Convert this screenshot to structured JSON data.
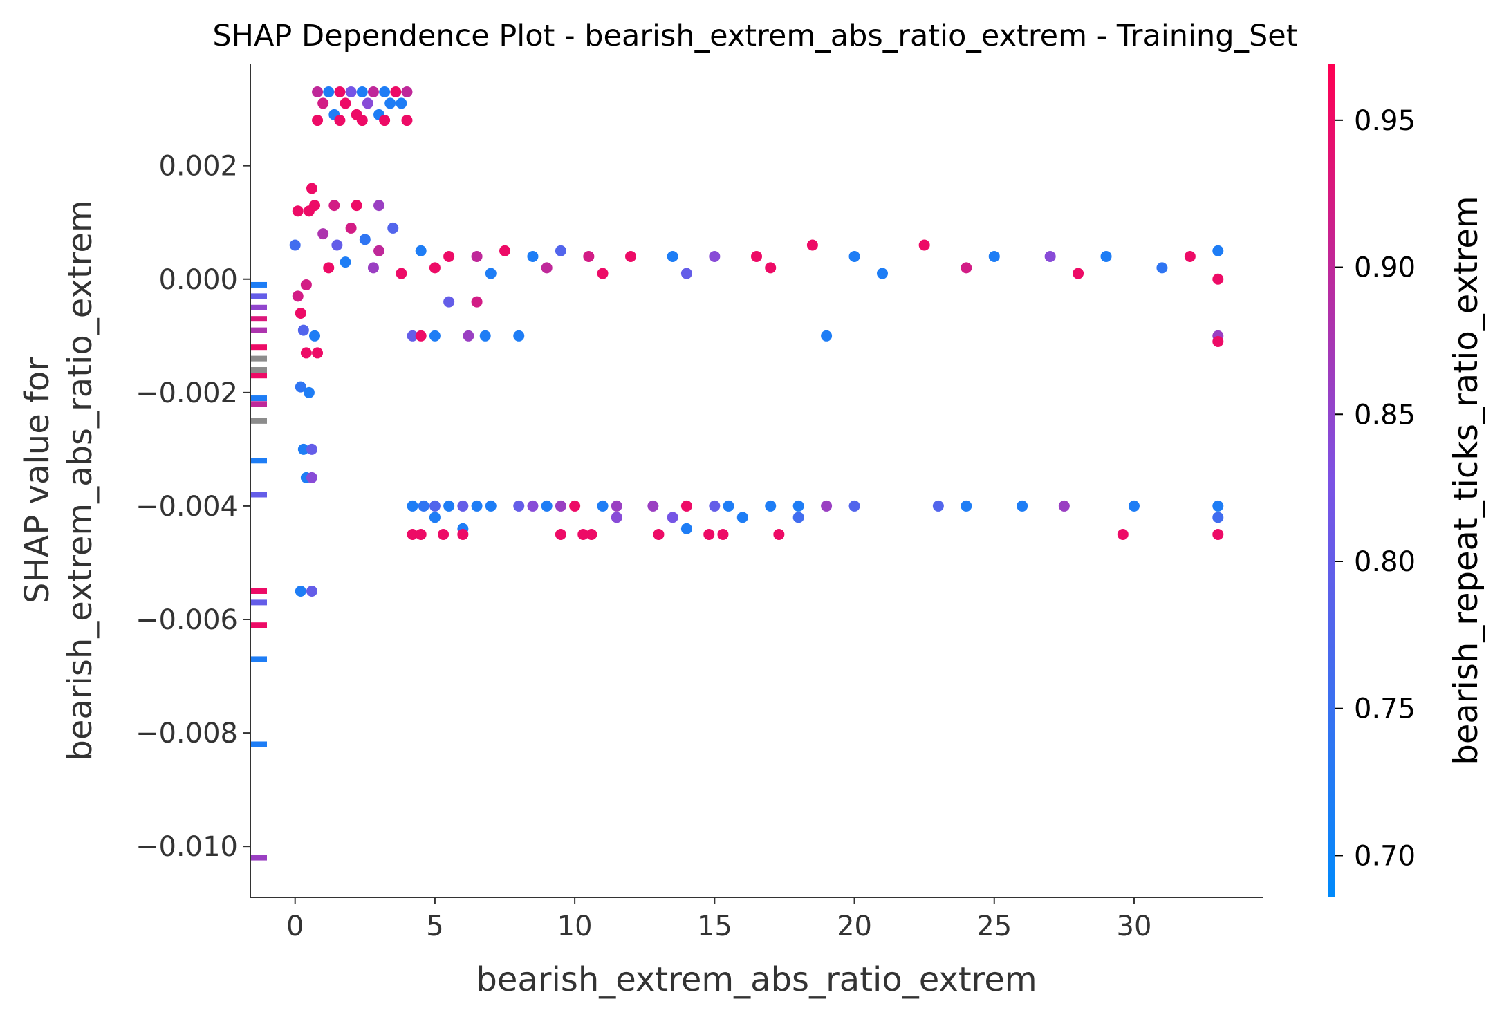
{
  "chart_data": {
    "type": "scatter",
    "title": "SHAP Dependence Plot - bearish_extrem_abs_ratio_extrem - Training_Set",
    "xlabel": "bearish_extrem_abs_ratio_extrem",
    "ylabel_line1": "SHAP value for",
    "ylabel_line2": "bearish_extrem_abs_ratio_extrem",
    "xlim": [
      -1.6,
      34.6
    ],
    "ylim": [
      -0.0109,
      0.0038
    ],
    "xticks": [
      0,
      5,
      10,
      15,
      20,
      25,
      30
    ],
    "xtick_labels": [
      "0",
      "5",
      "10",
      "15",
      "20",
      "25",
      "30"
    ],
    "yticks": [
      0.002,
      0.0,
      -0.002,
      -0.004,
      -0.006,
      -0.008,
      -0.01
    ],
    "ytick_labels": [
      "0.002",
      "0.000",
      "−0.002",
      "−0.004",
      "−0.006",
      "−0.008",
      "−0.010"
    ],
    "grid": false,
    "colorbar": {
      "title": "bearish_repeat_ticks_ratio_extrem",
      "range": [
        0.686,
        0.969
      ],
      "ticks": [
        0.7,
        0.75,
        0.8,
        0.85,
        0.9,
        0.95
      ],
      "tick_labels": [
        "0.70",
        "0.75",
        "0.80",
        "0.85",
        "0.90",
        "0.95"
      ],
      "colormap": [
        "#008afb",
        "#7c52e4",
        "#ff0052"
      ]
    },
    "missing_value_marks": [
      {
        "y": -0.0001,
        "c": 0.72
      },
      {
        "y": -0.0003,
        "c": 0.8
      },
      {
        "y": -0.0005,
        "c": 0.85
      },
      {
        "y": -0.0007,
        "c": 0.93
      },
      {
        "y": -0.0009,
        "c": 0.88
      },
      {
        "y": -0.0012,
        "c": 0.95
      },
      {
        "y": -0.0014,
        "c": null
      },
      {
        "y": -0.0016,
        "c": null
      },
      {
        "y": -0.0017,
        "c": 0.95
      },
      {
        "y": -0.0021,
        "c": 0.72
      },
      {
        "y": -0.0022,
        "c": 0.9
      },
      {
        "y": -0.0025,
        "c": null
      },
      {
        "y": -0.0032,
        "c": 0.72
      },
      {
        "y": -0.0038,
        "c": 0.8
      },
      {
        "y": -0.0055,
        "c": 0.95
      },
      {
        "y": -0.0057,
        "c": 0.8
      },
      {
        "y": -0.0061,
        "c": 0.95
      },
      {
        "y": -0.0067,
        "c": 0.72
      },
      {
        "y": -0.0082,
        "c": 0.72
      },
      {
        "y": -0.0102,
        "c": 0.86
      }
    ],
    "points": [
      {
        "x": 0.0,
        "y": 0.0006,
        "c": 0.76
      },
      {
        "x": 0.1,
        "y": -0.0003,
        "c": 0.92
      },
      {
        "x": 0.2,
        "y": -0.0006,
        "c": 0.95
      },
      {
        "x": 0.3,
        "y": -0.0009,
        "c": 0.78
      },
      {
        "x": 0.4,
        "y": -0.0013,
        "c": 0.95
      },
      {
        "x": 0.2,
        "y": -0.0019,
        "c": 0.74
      },
      {
        "x": 0.5,
        "y": -0.002,
        "c": 0.72
      },
      {
        "x": 0.3,
        "y": -0.003,
        "c": 0.72
      },
      {
        "x": 0.6,
        "y": -0.003,
        "c": 0.8
      },
      {
        "x": 0.4,
        "y": -0.0035,
        "c": 0.72
      },
      {
        "x": 0.6,
        "y": -0.0035,
        "c": 0.84
      },
      {
        "x": 0.2,
        "y": -0.0055,
        "c": 0.72
      },
      {
        "x": 0.6,
        "y": -0.0055,
        "c": 0.8
      },
      {
        "x": 0.1,
        "y": 0.0012,
        "c": 0.95
      },
      {
        "x": 0.5,
        "y": 0.0012,
        "c": 0.95
      },
      {
        "x": 0.6,
        "y": 0.0016,
        "c": 0.95
      },
      {
        "x": 0.7,
        "y": 0.0013,
        "c": 0.95
      },
      {
        "x": 0.4,
        "y": -0.0001,
        "c": 0.92
      },
      {
        "x": 0.7,
        "y": -0.001,
        "c": 0.72
      },
      {
        "x": 0.8,
        "y": -0.0013,
        "c": 0.95
      },
      {
        "x": 0.8,
        "y": 0.0033,
        "c": 0.9
      },
      {
        "x": 1.2,
        "y": 0.0033,
        "c": 0.72
      },
      {
        "x": 1.6,
        "y": 0.0033,
        "c": 0.95
      },
      {
        "x": 2.0,
        "y": 0.0033,
        "c": 0.82
      },
      {
        "x": 2.4,
        "y": 0.0033,
        "c": 0.72
      },
      {
        "x": 2.8,
        "y": 0.0033,
        "c": 0.9
      },
      {
        "x": 3.2,
        "y": 0.0033,
        "c": 0.72
      },
      {
        "x": 3.6,
        "y": 0.0033,
        "c": 0.95
      },
      {
        "x": 4.0,
        "y": 0.0033,
        "c": 0.9
      },
      {
        "x": 1.0,
        "y": 0.0031,
        "c": 0.92
      },
      {
        "x": 1.8,
        "y": 0.0031,
        "c": 0.95
      },
      {
        "x": 2.6,
        "y": 0.0031,
        "c": 0.84
      },
      {
        "x": 3.4,
        "y": 0.0031,
        "c": 0.72
      },
      {
        "x": 3.8,
        "y": 0.0031,
        "c": 0.72
      },
      {
        "x": 1.4,
        "y": 0.0029,
        "c": 0.72
      },
      {
        "x": 2.2,
        "y": 0.0029,
        "c": 0.95
      },
      {
        "x": 3.0,
        "y": 0.0029,
        "c": 0.72
      },
      {
        "x": 0.8,
        "y": 0.0028,
        "c": 0.95
      },
      {
        "x": 1.6,
        "y": 0.0028,
        "c": 0.95
      },
      {
        "x": 2.4,
        "y": 0.0028,
        "c": 0.95
      },
      {
        "x": 3.2,
        "y": 0.0028,
        "c": 0.95
      },
      {
        "x": 4.0,
        "y": 0.0028,
        "c": 0.95
      },
      {
        "x": 1.0,
        "y": 0.0008,
        "c": 0.88
      },
      {
        "x": 1.5,
        "y": 0.0006,
        "c": 0.8
      },
      {
        "x": 2.0,
        "y": 0.0009,
        "c": 0.92
      },
      {
        "x": 2.5,
        "y": 0.0007,
        "c": 0.74
      },
      {
        "x": 3.0,
        "y": 0.0005,
        "c": 0.9
      },
      {
        "x": 3.5,
        "y": 0.0009,
        "c": 0.78
      },
      {
        "x": 1.2,
        "y": 0.0002,
        "c": 0.95
      },
      {
        "x": 1.8,
        "y": 0.0003,
        "c": 0.72
      },
      {
        "x": 2.8,
        "y": 0.0002,
        "c": 0.86
      },
      {
        "x": 3.8,
        "y": 0.0001,
        "c": 0.95
      },
      {
        "x": 1.4,
        "y": 0.0013,
        "c": 0.92
      },
      {
        "x": 2.2,
        "y": 0.0013,
        "c": 0.95
      },
      {
        "x": 3.0,
        "y": 0.0013,
        "c": 0.86
      },
      {
        "x": 4.5,
        "y": 0.0005,
        "c": 0.72
      },
      {
        "x": 5.5,
        "y": 0.0004,
        "c": 0.95
      },
      {
        "x": 6.5,
        "y": 0.0004,
        "c": 0.9
      },
      {
        "x": 7.5,
        "y": 0.0005,
        "c": 0.95
      },
      {
        "x": 8.5,
        "y": 0.0004,
        "c": 0.72
      },
      {
        "x": 9.5,
        "y": 0.0005,
        "c": 0.78
      },
      {
        "x": 10.5,
        "y": 0.0004,
        "c": 0.92
      },
      {
        "x": 12,
        "y": 0.0004,
        "c": 0.95
      },
      {
        "x": 13.5,
        "y": 0.0004,
        "c": 0.72
      },
      {
        "x": 15,
        "y": 0.0004,
        "c": 0.84
      },
      {
        "x": 16.5,
        "y": 0.0004,
        "c": 0.95
      },
      {
        "x": 18.5,
        "y": 0.0006,
        "c": 0.95
      },
      {
        "x": 20,
        "y": 0.0004,
        "c": 0.72
      },
      {
        "x": 22.5,
        "y": 0.0006,
        "c": 0.95
      },
      {
        "x": 25,
        "y": 0.0004,
        "c": 0.72
      },
      {
        "x": 27,
        "y": 0.0004,
        "c": 0.84
      },
      {
        "x": 29,
        "y": 0.0004,
        "c": 0.72
      },
      {
        "x": 32,
        "y": 0.0004,
        "c": 0.95
      },
      {
        "x": 33,
        "y": 0.0005,
        "c": 0.72
      },
      {
        "x": 5,
        "y": 0.0002,
        "c": 0.95
      },
      {
        "x": 7,
        "y": 0.0001,
        "c": 0.72
      },
      {
        "x": 9,
        "y": 0.0002,
        "c": 0.9
      },
      {
        "x": 11,
        "y": 0.0001,
        "c": 0.95
      },
      {
        "x": 14,
        "y": 0.0001,
        "c": 0.8
      },
      {
        "x": 17,
        "y": 0.0002,
        "c": 0.95
      },
      {
        "x": 21,
        "y": 0.0001,
        "c": 0.72
      },
      {
        "x": 24,
        "y": 0.0002,
        "c": 0.92
      },
      {
        "x": 28,
        "y": 0.0001,
        "c": 0.95
      },
      {
        "x": 31,
        "y": 0.0002,
        "c": 0.74
      },
      {
        "x": 33,
        "y": 0.0,
        "c": 0.95
      },
      {
        "x": 5.5,
        "y": -0.0004,
        "c": 0.8
      },
      {
        "x": 6.5,
        "y": -0.0004,
        "c": 0.92
      },
      {
        "x": 4.2,
        "y": -0.001,
        "c": 0.8
      },
      {
        "x": 4.5,
        "y": -0.001,
        "c": 0.95
      },
      {
        "x": 5.0,
        "y": -0.001,
        "c": 0.72
      },
      {
        "x": 6.2,
        "y": -0.001,
        "c": 0.86
      },
      {
        "x": 6.8,
        "y": -0.001,
        "c": 0.72
      },
      {
        "x": 8.0,
        "y": -0.001,
        "c": 0.72
      },
      {
        "x": 19.0,
        "y": -0.001,
        "c": 0.72
      },
      {
        "x": 33.0,
        "y": -0.001,
        "c": 0.86
      },
      {
        "x": 33.0,
        "y": -0.0011,
        "c": 0.95
      },
      {
        "x": 4.2,
        "y": -0.004,
        "c": 0.72
      },
      {
        "x": 4.6,
        "y": -0.004,
        "c": 0.74
      },
      {
        "x": 5.0,
        "y": -0.004,
        "c": 0.78
      },
      {
        "x": 5.5,
        "y": -0.004,
        "c": 0.72
      },
      {
        "x": 6.0,
        "y": -0.004,
        "c": 0.8
      },
      {
        "x": 6.5,
        "y": -0.004,
        "c": 0.72
      },
      {
        "x": 7.0,
        "y": -0.004,
        "c": 0.72
      },
      {
        "x": 8.0,
        "y": -0.004,
        "c": 0.8
      },
      {
        "x": 8.5,
        "y": -0.004,
        "c": 0.84
      },
      {
        "x": 9.0,
        "y": -0.004,
        "c": 0.72
      },
      {
        "x": 9.5,
        "y": -0.004,
        "c": 0.86
      },
      {
        "x": 10.0,
        "y": -0.004,
        "c": 0.95
      },
      {
        "x": 11.0,
        "y": -0.004,
        "c": 0.72
      },
      {
        "x": 11.5,
        "y": -0.004,
        "c": 0.86
      },
      {
        "x": 12.8,
        "y": -0.004,
        "c": 0.86
      },
      {
        "x": 14.0,
        "y": -0.004,
        "c": 0.95
      },
      {
        "x": 15.0,
        "y": -0.004,
        "c": 0.8
      },
      {
        "x": 15.5,
        "y": -0.004,
        "c": 0.72
      },
      {
        "x": 17.0,
        "y": -0.004,
        "c": 0.72
      },
      {
        "x": 18.0,
        "y": -0.004,
        "c": 0.72
      },
      {
        "x": 19.0,
        "y": -0.004,
        "c": 0.86
      },
      {
        "x": 20.0,
        "y": -0.004,
        "c": 0.78
      },
      {
        "x": 23.0,
        "y": -0.004,
        "c": 0.78
      },
      {
        "x": 24.0,
        "y": -0.004,
        "c": 0.72
      },
      {
        "x": 26.0,
        "y": -0.004,
        "c": 0.72
      },
      {
        "x": 27.5,
        "y": -0.004,
        "c": 0.86
      },
      {
        "x": 30.0,
        "y": -0.004,
        "c": 0.72
      },
      {
        "x": 33.0,
        "y": -0.004,
        "c": 0.72
      },
      {
        "x": 5.0,
        "y": -0.0042,
        "c": 0.72
      },
      {
        "x": 11.5,
        "y": -0.0042,
        "c": 0.84
      },
      {
        "x": 13.5,
        "y": -0.0042,
        "c": 0.82
      },
      {
        "x": 16.0,
        "y": -0.0042,
        "c": 0.72
      },
      {
        "x": 18.0,
        "y": -0.0042,
        "c": 0.76
      },
      {
        "x": 33.0,
        "y": -0.0042,
        "c": 0.76
      },
      {
        "x": 6.0,
        "y": -0.0044,
        "c": 0.72
      },
      {
        "x": 14.0,
        "y": -0.0044,
        "c": 0.72
      },
      {
        "x": 4.2,
        "y": -0.0045,
        "c": 0.95
      },
      {
        "x": 4.5,
        "y": -0.0045,
        "c": 0.95
      },
      {
        "x": 5.3,
        "y": -0.0045,
        "c": 0.95
      },
      {
        "x": 6.0,
        "y": -0.0045,
        "c": 0.95
      },
      {
        "x": 9.5,
        "y": -0.0045,
        "c": 0.95
      },
      {
        "x": 10.3,
        "y": -0.0045,
        "c": 0.95
      },
      {
        "x": 10.6,
        "y": -0.0045,
        "c": 0.95
      },
      {
        "x": 13.0,
        "y": -0.0045,
        "c": 0.95
      },
      {
        "x": 14.8,
        "y": -0.0045,
        "c": 0.95
      },
      {
        "x": 15.3,
        "y": -0.0045,
        "c": 0.95
      },
      {
        "x": 17.3,
        "y": -0.0045,
        "c": 0.95
      },
      {
        "x": 29.6,
        "y": -0.0045,
        "c": 0.95
      },
      {
        "x": 33.0,
        "y": -0.0045,
        "c": 0.95
      }
    ]
  }
}
